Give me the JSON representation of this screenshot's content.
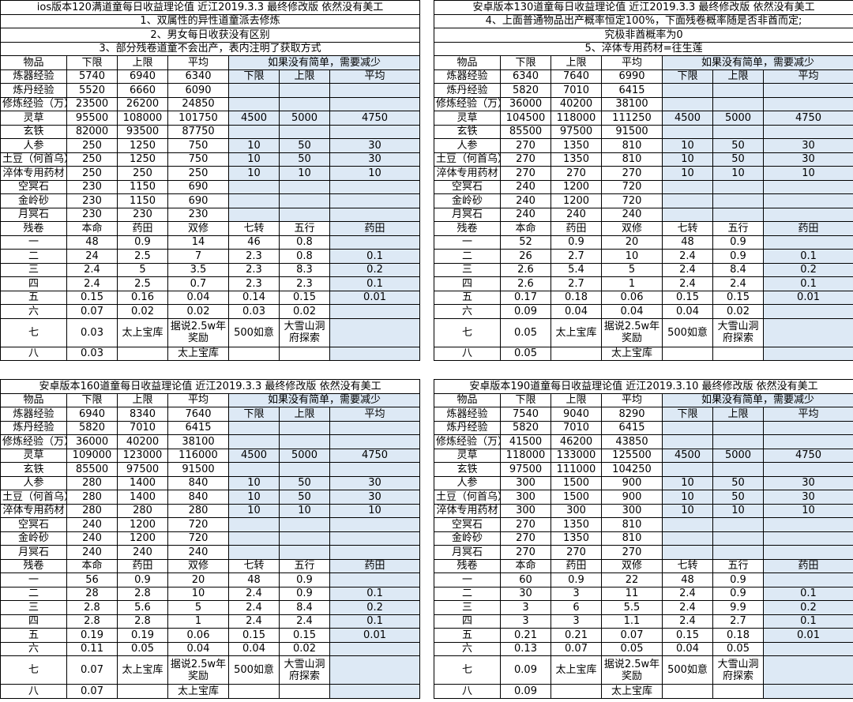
{
  "panels": [
    {
      "notes": [
        "ios版本120满道童每日收益理论值  近江2019.3.3  最终修改版  依然没有美工",
        "1、双属性的异性道童派去修炼",
        "2、男女每日收获没有区别",
        "3、部分残卷道童不会出产，表内注明了获取方式"
      ],
      "header": [
        "物品",
        "下限",
        "上限",
        "平均",
        "如果没有简单，需要减少"
      ],
      "sub_header": [
        "下限",
        "上限",
        "平均"
      ],
      "items": [
        {
          "name": "炼器经验",
          "low": "5740",
          "high": "6940",
          "avg": "6340",
          "r": [
            "下限",
            "上限",
            "平均"
          ]
        },
        {
          "name": "炼丹经验",
          "low": "5520",
          "high": "6660",
          "avg": "6090",
          "r": [
            "",
            "",
            ""
          ]
        },
        {
          "name": "修炼经验（万）",
          "low": "23500",
          "high": "26200",
          "avg": "24850",
          "r": [
            "",
            "",
            ""
          ]
        },
        {
          "name": "灵草",
          "low": "95500",
          "high": "108000",
          "avg": "101750",
          "r": [
            "4500",
            "5000",
            "4750"
          ]
        },
        {
          "name": "玄铁",
          "low": "82000",
          "high": "93500",
          "avg": "87750",
          "r": [
            "",
            "",
            ""
          ]
        },
        {
          "name": "人参",
          "low": "250",
          "high": "1250",
          "avg": "750",
          "r": [
            "10",
            "50",
            "30"
          ]
        },
        {
          "name": "土豆（何首乌）",
          "low": "250",
          "high": "1250",
          "avg": "750",
          "r": [
            "10",
            "50",
            "30"
          ]
        },
        {
          "name": "淬体专用药材",
          "low": "250",
          "high": "250",
          "avg": "250",
          "r": [
            "10",
            "10",
            "10"
          ]
        },
        {
          "name": "空冥石",
          "low": "230",
          "high": "1150",
          "avg": "690",
          "r": [
            "",
            "",
            ""
          ]
        },
        {
          "name": "金岭砂",
          "low": "230",
          "high": "1150",
          "avg": "690",
          "r": [
            "",
            "",
            ""
          ]
        },
        {
          "name": "月冥石",
          "low": "230",
          "high": "230",
          "avg": "230",
          "r": [
            "",
            "",
            ""
          ]
        }
      ],
      "scroll_header": [
        "残卷",
        "本命",
        "药田",
        "双修",
        "七转",
        "五行",
        "药田"
      ],
      "scrolls": [
        [
          "一",
          "48",
          "0.9",
          "14",
          "46",
          "0.8",
          ""
        ],
        [
          "二",
          "24",
          "2.5",
          "7",
          "2.3",
          "0.8",
          "0.1"
        ],
        [
          "三",
          "2.4",
          "5",
          "3.5",
          "2.3",
          "8.3",
          "0.2"
        ],
        [
          "四",
          "2.4",
          "2.5",
          "0.7",
          "2.3",
          "2.3",
          "0.1"
        ],
        [
          "五",
          "0.15",
          "0.16",
          "0.04",
          "0.14",
          "0.15",
          "0.01"
        ],
        [
          "六",
          "0.07",
          "0.02",
          "0.02",
          "0.03",
          "0.02",
          ""
        ]
      ],
      "scroll7": [
        "七",
        "0.03",
        "太上宝库",
        "据说2.5w年奖励",
        "500如意",
        "大雪山洞府探索"
      ],
      "scroll8": [
        "八",
        "0.03",
        "太上宝库"
      ]
    },
    {
      "notes": [
        "安卓版本130道童每日收益理论值  近江2019.3.3  最终修改版  依然没有美工",
        "4、上面普通物品出产概率恒定100%，下面残卷概率随是否非酋而定;",
        "究极非酋概率为0",
        "5、淬体专用药材=往生莲"
      ],
      "header": [
        "物品",
        "下限",
        "上限",
        "平均",
        "如果没有简单，需要减少"
      ],
      "items": [
        {
          "name": "炼器经验",
          "low": "6340",
          "high": "7640",
          "avg": "6990",
          "r": [
            "下限",
            "上限",
            "平均"
          ]
        },
        {
          "name": "炼丹经验",
          "low": "5820",
          "high": "7010",
          "avg": "6415",
          "r": [
            "",
            "",
            ""
          ]
        },
        {
          "name": "修炼经验（万）",
          "low": "36000",
          "high": "40200",
          "avg": "38100",
          "r": [
            "",
            "",
            ""
          ]
        },
        {
          "name": "灵草",
          "low": "104500",
          "high": "118000",
          "avg": "111250",
          "r": [
            "4500",
            "5000",
            "4750"
          ]
        },
        {
          "name": "玄铁",
          "low": "85500",
          "high": "97500",
          "avg": "91500",
          "r": [
            "",
            "",
            ""
          ]
        },
        {
          "name": "人参",
          "low": "270",
          "high": "1350",
          "avg": "810",
          "r": [
            "10",
            "50",
            "30"
          ]
        },
        {
          "name": "土豆（何首乌）",
          "low": "270",
          "high": "1350",
          "avg": "810",
          "r": [
            "10",
            "50",
            "30"
          ]
        },
        {
          "name": "淬体专用药材",
          "low": "270",
          "high": "270",
          "avg": "270",
          "r": [
            "10",
            "10",
            "10"
          ]
        },
        {
          "name": "空冥石",
          "low": "240",
          "high": "1200",
          "avg": "720",
          "r": [
            "",
            "",
            ""
          ]
        },
        {
          "name": "金岭砂",
          "low": "240",
          "high": "1200",
          "avg": "720",
          "r": [
            "",
            "",
            ""
          ]
        },
        {
          "name": "月冥石",
          "low": "240",
          "high": "240",
          "avg": "240",
          "r": [
            "",
            "",
            ""
          ]
        }
      ],
      "scroll_header": [
        "残卷",
        "本命",
        "药田",
        "双修",
        "七转",
        "五行",
        "药田"
      ],
      "scrolls": [
        [
          "一",
          "52",
          "0.9",
          "20",
          "48",
          "0.9",
          ""
        ],
        [
          "二",
          "26",
          "2.7",
          "10",
          "2.4",
          "0.9",
          "0.1"
        ],
        [
          "三",
          "2.6",
          "5.4",
          "5",
          "2.4",
          "8.4",
          "0.2"
        ],
        [
          "四",
          "2.6",
          "2.7",
          "1",
          "2.4",
          "2.4",
          "0.1"
        ],
        [
          "五",
          "0.17",
          "0.18",
          "0.06",
          "0.15",
          "0.15",
          "0.01"
        ],
        [
          "六",
          "0.09",
          "0.04",
          "0.04",
          "0.04",
          "0.02",
          ""
        ]
      ],
      "scroll7": [
        "七",
        "0.05",
        "太上宝库",
        "据说2.5w年奖励",
        "500如意",
        "大雪山洞府探索"
      ],
      "scroll8": [
        "八",
        "0.05",
        "太上宝库"
      ]
    },
    {
      "notes": [
        "安卓版本160道童每日收益理论值  近江2019.3.3  最终修改版  依然没有美工"
      ],
      "header": [
        "物品",
        "下限",
        "上限",
        "平均",
        "如果没有简单，需要减少"
      ],
      "items": [
        {
          "name": "炼器经验",
          "low": "6940",
          "high": "8340",
          "avg": "7640",
          "r": [
            "下限",
            "上限",
            "平均"
          ]
        },
        {
          "name": "炼丹经验",
          "low": "5820",
          "high": "7010",
          "avg": "6415",
          "r": [
            "",
            "",
            ""
          ]
        },
        {
          "name": "修炼经验（万）",
          "low": "36000",
          "high": "40200",
          "avg": "38100",
          "r": [
            "",
            "",
            ""
          ]
        },
        {
          "name": "灵草",
          "low": "109000",
          "high": "123000",
          "avg": "116000",
          "r": [
            "4500",
            "5000",
            "4750"
          ]
        },
        {
          "name": "玄铁",
          "low": "85500",
          "high": "97500",
          "avg": "91500",
          "r": [
            "",
            "",
            ""
          ]
        },
        {
          "name": "人参",
          "low": "280",
          "high": "1400",
          "avg": "840",
          "r": [
            "10",
            "50",
            "30"
          ]
        },
        {
          "name": "土豆（何首乌）",
          "low": "280",
          "high": "1400",
          "avg": "840",
          "r": [
            "10",
            "50",
            "30"
          ]
        },
        {
          "name": "淬体专用药材",
          "low": "280",
          "high": "280",
          "avg": "280",
          "r": [
            "10",
            "10",
            "10"
          ]
        },
        {
          "name": "空冥石",
          "low": "240",
          "high": "1200",
          "avg": "720",
          "r": [
            "",
            "",
            ""
          ]
        },
        {
          "name": "金岭砂",
          "low": "240",
          "high": "1200",
          "avg": "720",
          "r": [
            "",
            "",
            ""
          ]
        },
        {
          "name": "月冥石",
          "low": "240",
          "high": "240",
          "avg": "240",
          "r": [
            "",
            "",
            ""
          ]
        }
      ],
      "scroll_header": [
        "残卷",
        "本命",
        "药田",
        "双修",
        "七转",
        "五行",
        "药田"
      ],
      "scrolls": [
        [
          "一",
          "56",
          "0.9",
          "20",
          "48",
          "0.9",
          ""
        ],
        [
          "二",
          "28",
          "2.8",
          "10",
          "2.4",
          "0.9",
          "0.1"
        ],
        [
          "三",
          "2.8",
          "5.6",
          "5",
          "2.4",
          "8.4",
          "0.2"
        ],
        [
          "四",
          "2.8",
          "2.8",
          "1",
          "2.4",
          "2.4",
          "0.1"
        ],
        [
          "五",
          "0.19",
          "0.19",
          "0.06",
          "0.15",
          "0.15",
          "0.01"
        ],
        [
          "六",
          "0.11",
          "0.05",
          "0.04",
          "0.04",
          "0.02",
          ""
        ]
      ],
      "scroll7": [
        "七",
        "0.07",
        "太上宝库",
        "据说2.5w年奖励",
        "500如意",
        "大雪山洞府探索"
      ],
      "scroll8": [
        "八",
        "0.07",
        "太上宝库"
      ]
    },
    {
      "notes": [
        "安卓版本190道童每日收益理论值  近江2019.3.10  最终修改版  依然没有美工"
      ],
      "header": [
        "物品",
        "下限",
        "上限",
        "平均",
        "如果没有简单，需要减少"
      ],
      "items": [
        {
          "name": "炼器经验",
          "low": "7540",
          "high": "9040",
          "avg": "8290",
          "r": [
            "下限",
            "上限",
            "平均"
          ]
        },
        {
          "name": "炼丹经验",
          "low": "5820",
          "high": "7010",
          "avg": "6415",
          "r": [
            "",
            "",
            ""
          ]
        },
        {
          "name": "修炼经验（万）",
          "low": "41500",
          "high": "46200",
          "avg": "43850",
          "r": [
            "",
            "",
            ""
          ]
        },
        {
          "name": "灵草",
          "low": "118000",
          "high": "133000",
          "avg": "125500",
          "r": [
            "4500",
            "5000",
            "4750"
          ]
        },
        {
          "name": "玄铁",
          "low": "97500",
          "high": "111000",
          "avg": "104250",
          "r": [
            "",
            "",
            ""
          ]
        },
        {
          "name": "人参",
          "low": "300",
          "high": "1500",
          "avg": "900",
          "r": [
            "10",
            "50",
            "30"
          ]
        },
        {
          "name": "土豆（何首乌）",
          "low": "300",
          "high": "1500",
          "avg": "900",
          "r": [
            "10",
            "50",
            "30"
          ]
        },
        {
          "name": "淬体专用药材",
          "low": "300",
          "high": "300",
          "avg": "300",
          "r": [
            "10",
            "10",
            "10"
          ]
        },
        {
          "name": "空冥石",
          "low": "270",
          "high": "1350",
          "avg": "810",
          "r": [
            "",
            "",
            ""
          ]
        },
        {
          "name": "金岭砂",
          "low": "270",
          "high": "1350",
          "avg": "810",
          "r": [
            "",
            "",
            ""
          ]
        },
        {
          "name": "月冥石",
          "low": "270",
          "high": "270",
          "avg": "270",
          "r": [
            "",
            "",
            ""
          ]
        }
      ],
      "scroll_header": [
        "残卷",
        "本命",
        "药田",
        "双修",
        "七转",
        "五行",
        "药田"
      ],
      "scrolls": [
        [
          "一",
          "60",
          "0.9",
          "22",
          "48",
          "0.9",
          ""
        ],
        [
          "二",
          "30",
          "3",
          "11",
          "2.4",
          "0.9",
          "0.1"
        ],
        [
          "三",
          "3",
          "6",
          "5.5",
          "2.4",
          "9.9",
          "0.2"
        ],
        [
          "四",
          "3",
          "3",
          "1.1",
          "2.4",
          "2.7",
          "0.1"
        ],
        [
          "五",
          "0.21",
          "0.21",
          "0.07",
          "0.15",
          "0.18",
          "0.01"
        ],
        [
          "六",
          "0.13",
          "0.07",
          "0.05",
          "0.04",
          "0.05",
          ""
        ]
      ],
      "scroll7": [
        "七",
        "0.09",
        "太上宝库",
        "据说2.5w年奖励",
        "500如意",
        "大雪山洞府探索"
      ],
      "scroll8": [
        "八",
        "0.09",
        "太上宝库"
      ]
    }
  ]
}
